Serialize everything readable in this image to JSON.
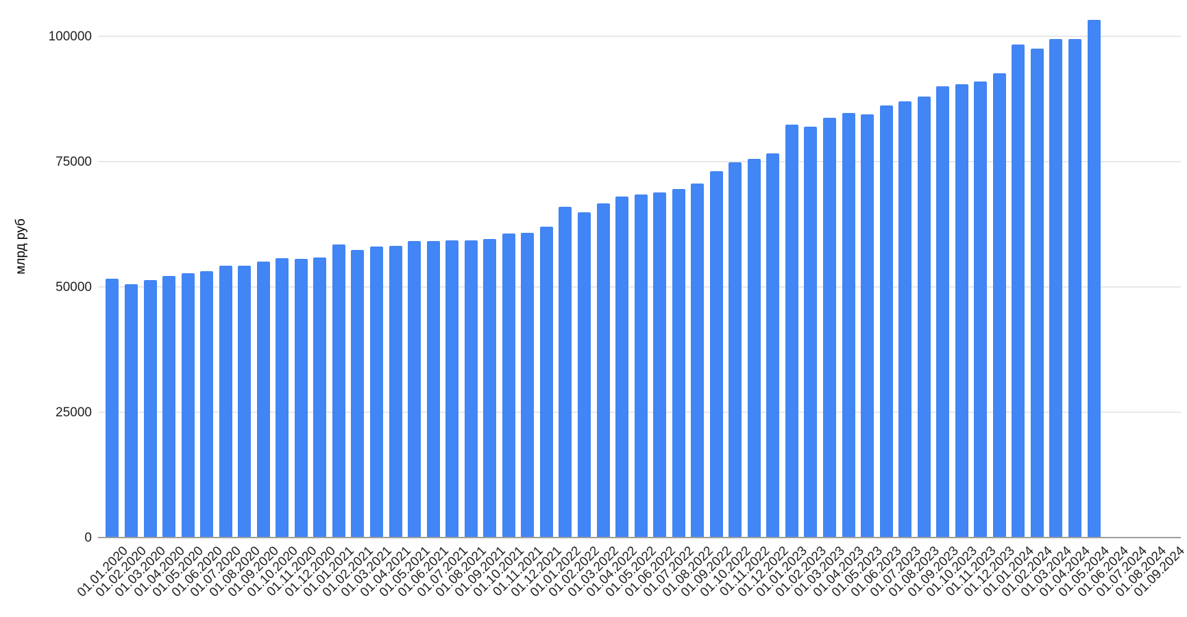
{
  "chart_data": {
    "type": "bar",
    "title": "",
    "xlabel": "",
    "ylabel": "млрд руб",
    "legend": "none",
    "grid": true,
    "bar_color": "#4285f4",
    "gridline_color": "#e8e8e8",
    "axis_line_color": "#9e9e9e",
    "y_ticks": [
      0,
      25000,
      50000,
      75000,
      100000
    ],
    "ylim": [
      0,
      105000
    ],
    "categories": [
      "01.01.2020",
      "01.02.2020",
      "01.03.2020",
      "01.04.2020",
      "01.05.2020",
      "01.06.2020",
      "01.07.2020",
      "01.08.2020",
      "01.09.2020",
      "01.10.2020",
      "01.11.2020",
      "01.12.2020",
      "01.01.2021",
      "01.02.2021",
      "01.03.2021",
      "01.04.2021",
      "01.05.2021",
      "01.06.2021",
      "01.07.2021",
      "01.08.2021",
      "01.09.2021",
      "01.10.2021",
      "01.11.2021",
      "01.12.2021",
      "01.01.2022",
      "01.02.2022",
      "01.03.2022",
      "01.04.2022",
      "01.05.2022",
      "01.06.2022",
      "01.07.2022",
      "01.08.2022",
      "01.09.2022",
      "01.10.2022",
      "01.11.2022",
      "01.12.2022",
      "01.01.2023",
      "01.02.2023",
      "01.03.2023",
      "01.04.2023",
      "01.05.2023",
      "01.06.2023",
      "01.07.2023",
      "01.08.2023",
      "01.09.2023",
      "01.10.2023",
      "01.11.2023",
      "01.12.2023",
      "01.01.2024",
      "01.02.2024",
      "01.03.2024",
      "01.04.2024",
      "01.05.2024",
      "01.06.2024",
      "01.07.2024",
      "01.08.2024",
      "01.09.2024"
    ],
    "values": [
      51600,
      50500,
      51400,
      52200,
      52800,
      53100,
      54200,
      54300,
      55100,
      55700,
      55600,
      55900,
      58500,
      57400,
      58000,
      58200,
      59200,
      59100,
      59300,
      59300,
      59500,
      60600,
      60800,
      62000,
      66000,
      64900,
      66600,
      68100,
      68400,
      68800,
      69500,
      70600,
      73100,
      74800,
      75500,
      76700,
      82400,
      82000,
      83800,
      84700,
      84400,
      86200,
      87000,
      88000,
      90000,
      90500,
      91000,
      92600,
      98300,
      97600,
      99400,
      99400,
      103300,
      null,
      null,
      null,
      null
    ]
  }
}
